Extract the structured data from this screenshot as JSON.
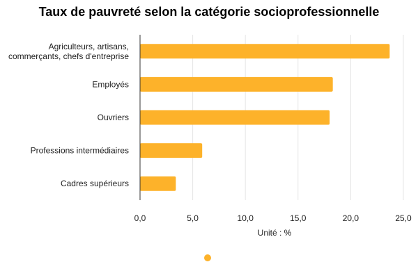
{
  "chart_data": {
    "type": "bar",
    "orientation": "horizontal",
    "title": "Taux de pauvreté selon la catégorie socioprofessionnelle",
    "xlabel": "Unité : %",
    "ylabel": "",
    "categories": [
      [
        "Agriculteurs, artisans,",
        "commerçants, chefs d'entreprise"
      ],
      [
        "Employés"
      ],
      [
        "Ouvriers"
      ],
      [
        "Professions intermédiaires"
      ],
      [
        "Cadres supérieurs"
      ]
    ],
    "values": [
      23.7,
      18.3,
      18.0,
      5.9,
      3.4
    ],
    "xlim": [
      0,
      25
    ],
    "xticks": [
      0,
      5,
      10,
      15,
      20,
      25
    ],
    "xtick_labels": [
      "0,0",
      "5,0",
      "10,0",
      "15,0",
      "20,0",
      "25,0"
    ],
    "grid": true,
    "legend": "bottom",
    "bar_color": "#FDB22A",
    "grid_color": "#E6E6E6",
    "axis_color": "#333333"
  }
}
